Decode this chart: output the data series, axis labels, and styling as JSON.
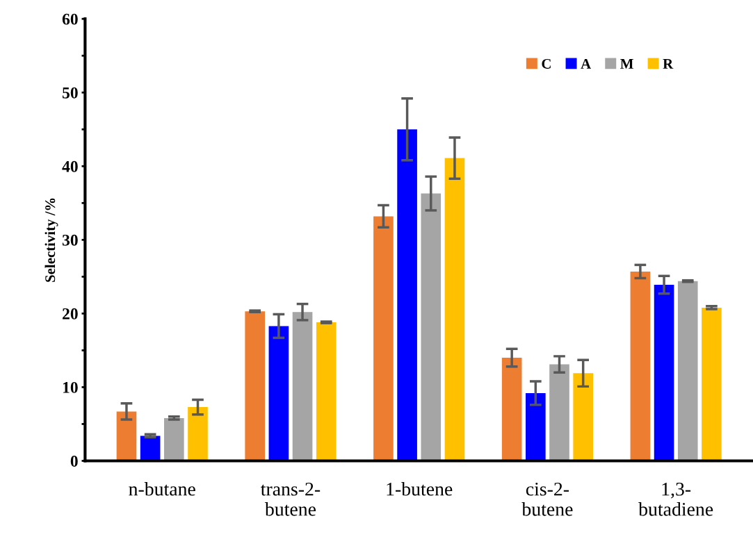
{
  "chart_data": {
    "type": "bar",
    "ylabel": "Selectivity /%",
    "categories": [
      "n-butane",
      "trans-2-\nbutene",
      "1-butene",
      "cis-2-\nbutene",
      "1,3-\nbutadiene"
    ],
    "series": [
      {
        "name": "C",
        "color": "#ed7d31",
        "values": [
          6.7,
          20.3,
          33.2,
          14.0,
          25.7
        ],
        "errors": [
          1.1,
          0.1,
          1.5,
          1.2,
          0.9
        ]
      },
      {
        "name": "A",
        "color": "#0000ff",
        "values": [
          3.4,
          18.3,
          45.0,
          9.2,
          23.9
        ],
        "errors": [
          0.2,
          1.6,
          4.2,
          1.6,
          1.2
        ]
      },
      {
        "name": "M",
        "color": "#a5a5a5",
        "values": [
          5.8,
          20.2,
          36.3,
          13.1,
          24.4
        ],
        "errors": [
          0.2,
          1.1,
          2.3,
          1.1,
          0.1
        ]
      },
      {
        "name": "R",
        "color": "#ffc000",
        "values": [
          7.3,
          18.8,
          41.1,
          11.9,
          20.8
        ],
        "errors": [
          1.0,
          0.1,
          2.8,
          1.8,
          0.2
        ]
      }
    ],
    "ylim": [
      0,
      60
    ],
    "yticks": [
      0,
      {
        "value": 5,
        "label": null
      },
      10,
      {
        "value": 15,
        "label": null
      },
      20,
      {
        "value": 25,
        "label": null
      },
      30,
      {
        "value": 35,
        "label": null
      },
      40,
      {
        "value": 45,
        "label": null
      },
      50,
      {
        "value": 55,
        "label": null
      },
      60
    ],
    "grid": false,
    "legend": "top right"
  }
}
